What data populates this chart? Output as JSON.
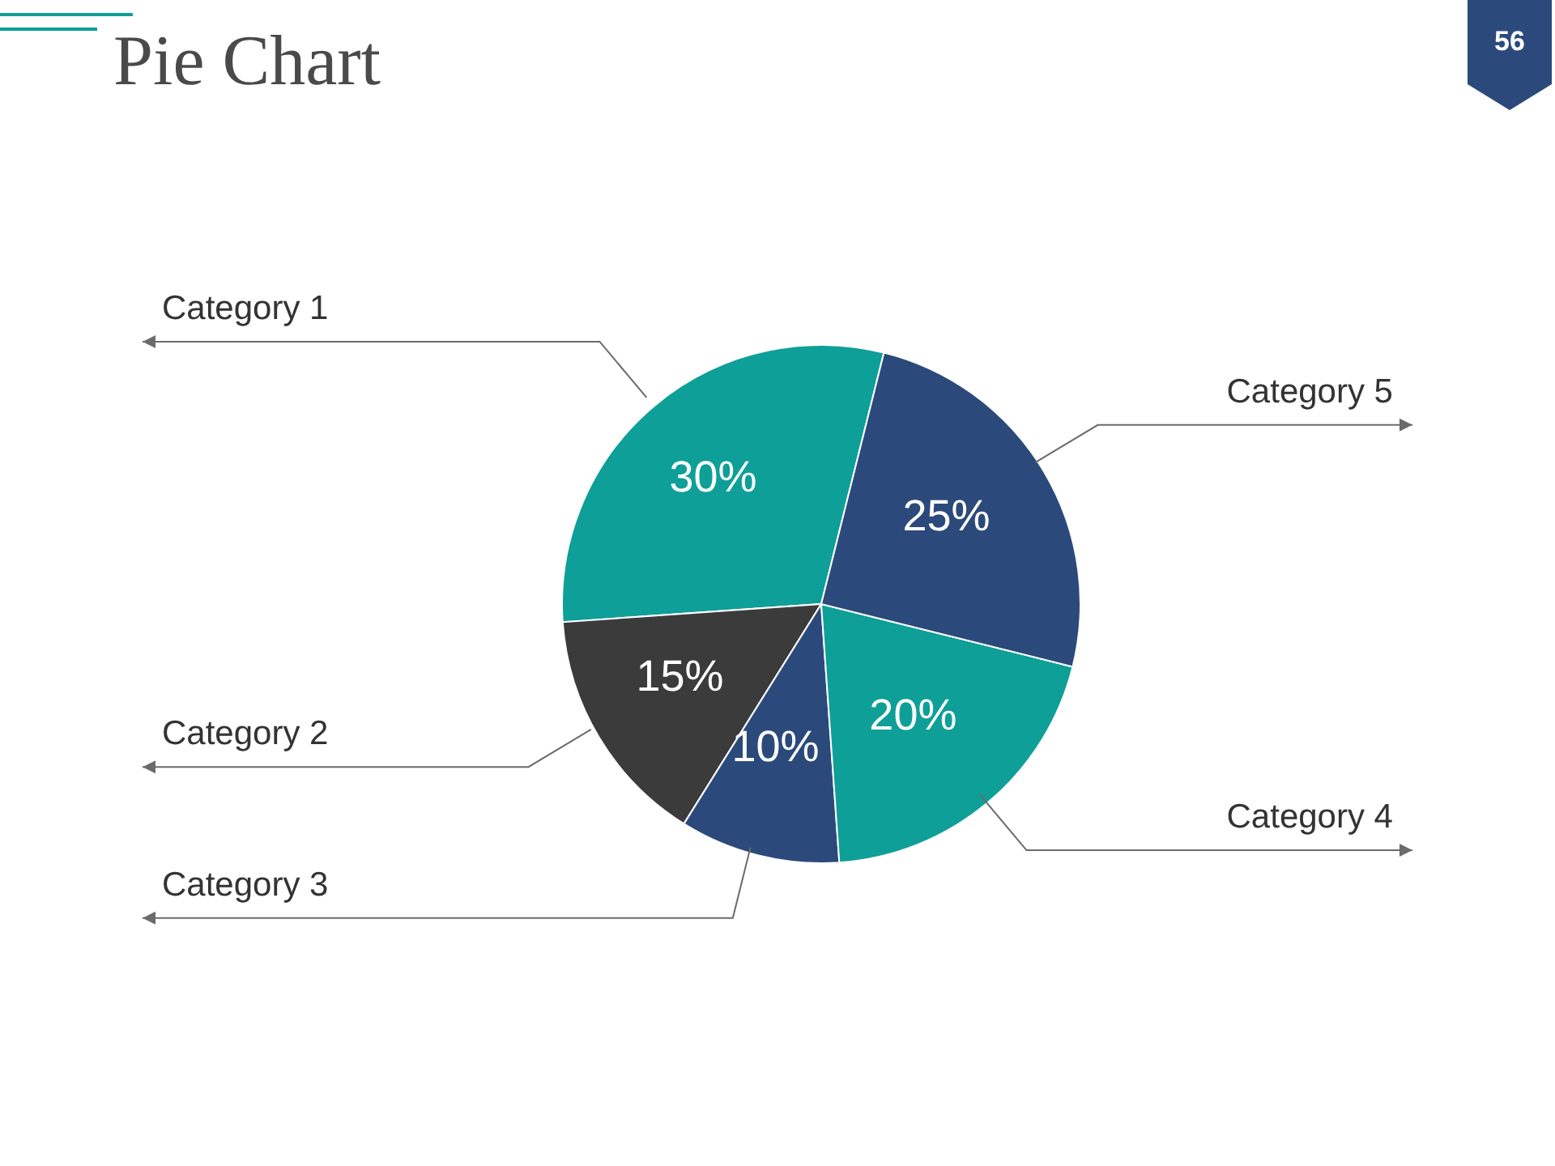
{
  "chart_data": {
    "type": "pie",
    "title": "Pie Chart",
    "categories": [
      "Category 1",
      "Category 2",
      "Category 3",
      "Category 4",
      "Category 5"
    ],
    "values": [
      30,
      15,
      10,
      20,
      25
    ],
    "colors": [
      "#0e9f98",
      "#3b3b3b",
      "#2b4a7b",
      "#0e9f98",
      "#2b4a7b"
    ],
    "value_labels": [
      "30%",
      "15%",
      "10%",
      "20%",
      "25%"
    ],
    "annotations": [
      "56"
    ]
  }
}
